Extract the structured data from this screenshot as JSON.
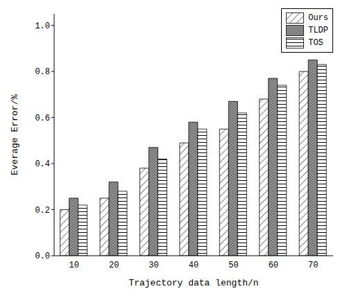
{
  "chart_data": {
    "type": "bar",
    "x_label": "Trajectory data length/n",
    "y_label": "Everage Error/%",
    "categories": [
      "10",
      "20",
      "30",
      "40",
      "50",
      "60",
      "70"
    ],
    "series": [
      {
        "name": "Ours",
        "color": "#000000",
        "values": [
          0.2,
          0.25,
          0.38,
          0.49,
          0.55,
          0.68,
          0.8
        ]
      },
      {
        "name": "TLDP",
        "color": "#9a9a9a",
        "values": [
          0.25,
          0.32,
          0.47,
          0.58,
          0.67,
          0.77,
          0.85
        ]
      },
      {
        "name": "TOS",
        "color": "#000000",
        "values": [
          0.22,
          0.28,
          0.42,
          0.55,
          0.62,
          0.74,
          0.83
        ]
      }
    ],
    "ylim": [
      0,
      1.05
    ],
    "yticks": [
      {
        "value": 0,
        "label": "0.0"
      },
      0.2,
      0.4,
      0.6,
      0.8,
      {
        "value": 1,
        "label": "1.0"
      }
    ],
    "legend": "top right",
    "grid": false
  }
}
